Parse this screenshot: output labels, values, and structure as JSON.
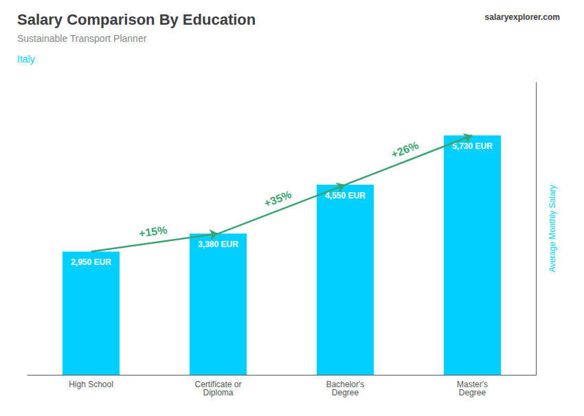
{
  "chart_data": {
    "type": "bar",
    "title": "Salary Comparison By Education",
    "subtitle": "Sustainable Transport Planner",
    "ylabel": "Average Monthly Salary",
    "categories": [
      "High School",
      "Certificate or\nDiploma",
      "Bachelor's\nDegree",
      "Master's\nDegree"
    ],
    "values": [
      2950,
      3380,
      4550,
      5730
    ],
    "value_labels": [
      "2,950 EUR",
      "3,380 EUR",
      "4,550 EUR",
      "5,730 EUR"
    ],
    "data_labels": true,
    "color": "#00cfff",
    "ylim": [
      0,
      7000
    ],
    "grid": false,
    "tick_labels": "x",
    "annotations": [
      {
        "text": "+15%",
        "from": "High School",
        "to": "Certificate or\nDiploma"
      },
      {
        "text": "+35%",
        "from": "Certificate or\nDiploma",
        "to": "Bachelor's\nDegree"
      },
      {
        "text": "+26%",
        "from": "Bachelor's\nDegree",
        "to": "Master's\nDegree"
      },
      {
        "text": "Italy"
      },
      {
        "text": "salaryexplorer.com"
      }
    ]
  }
}
